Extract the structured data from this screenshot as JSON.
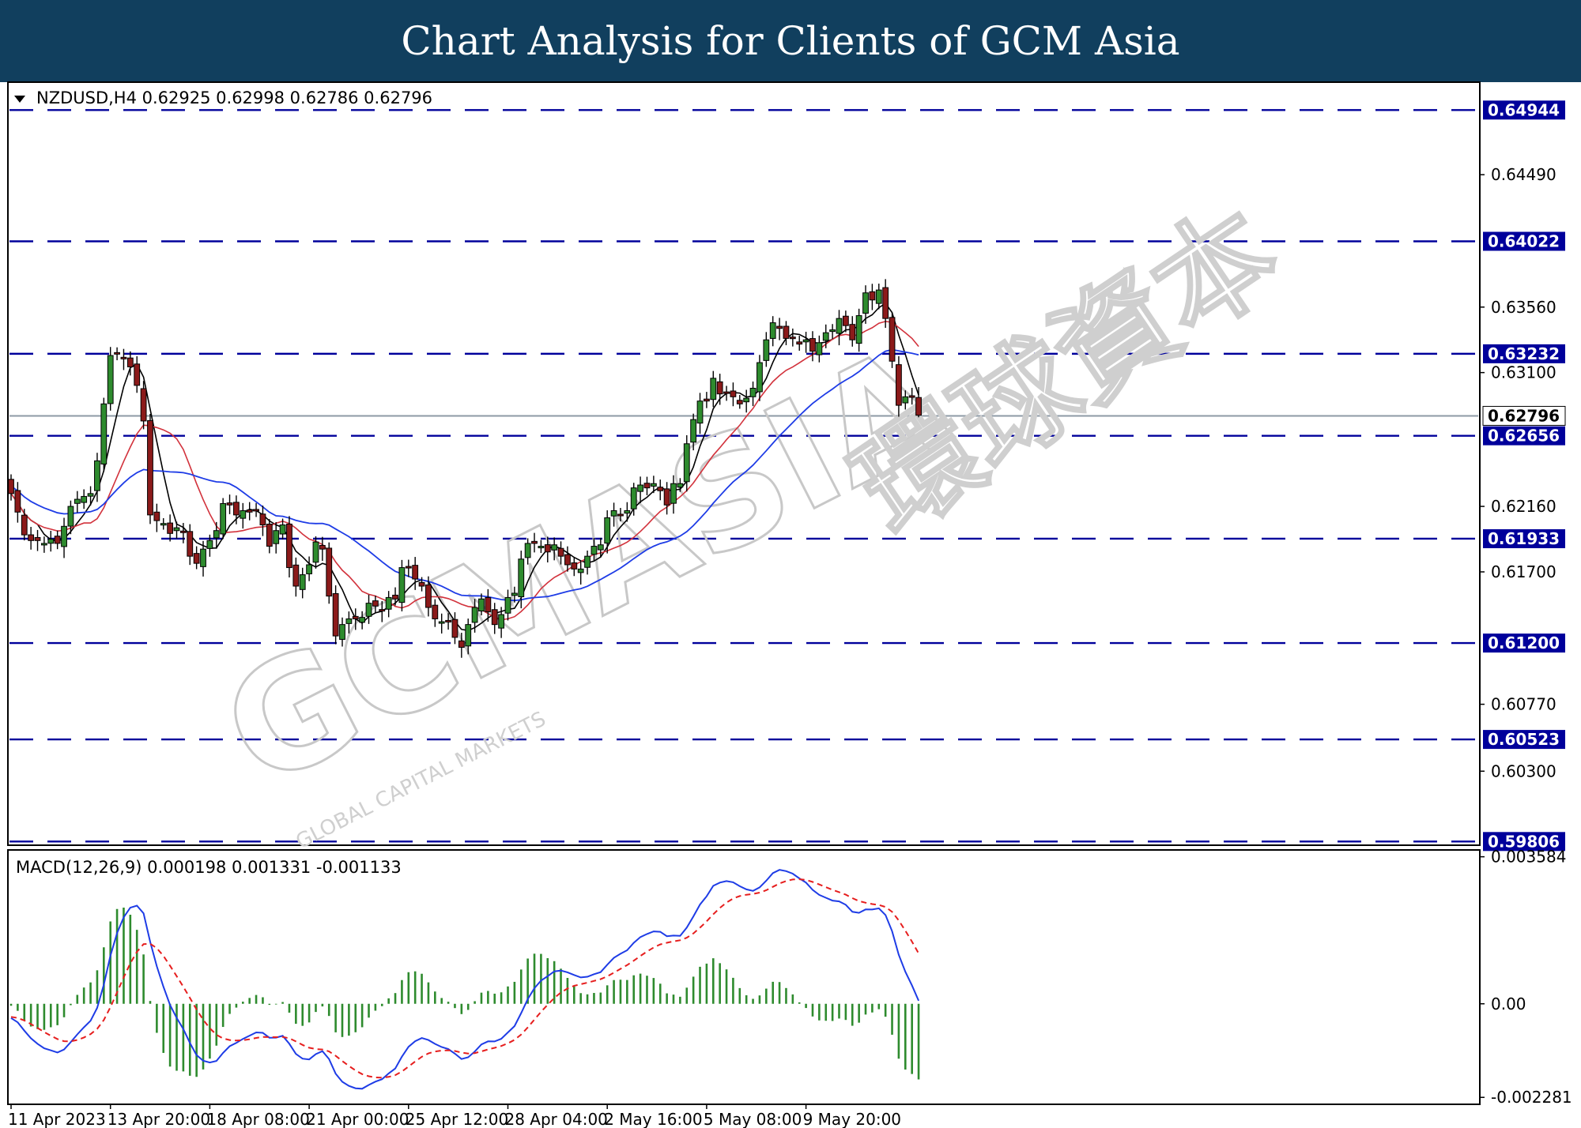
{
  "banner": {
    "title": "Chart Analysis for Clients of GCM Asia"
  },
  "watermark": {
    "main": "GCMASIA",
    "sub": "GLOBAL CAPITAL MARKETS",
    "chinese": "環球資本"
  },
  "colors": {
    "banner": "#113f5e",
    "level_line": "#00009b",
    "bull_candle": "#2e8b2e",
    "bear_candle": "#8b1a1a",
    "ma_fast": "#000000",
    "ma_mid": "#d2323c",
    "ma_slow": "#1e3ce6",
    "macd_line": "#1e3ce6",
    "signal_line": "#e61e1e",
    "histogram": "#2e8b2e",
    "price_tag_bg": "#00009b"
  },
  "chart_data": [
    {
      "type": "candlestick",
      "header": "NZDUSD,H4  0.62925 0.62998 0.62786 0.62796",
      "symbol": "NZDUSD",
      "timeframe": "H4",
      "ohlc_last": [
        0.62925,
        0.62998,
        0.62786,
        0.62796
      ],
      "ylim": [
        0.5978,
        0.6514
      ],
      "y_ticks": [
        "0.64490",
        "0.63560",
        "0.63100",
        "0.62160",
        "0.61700",
        "0.60770",
        "0.60300"
      ],
      "x_ticks": [
        "11 Apr 2023",
        "13 Apr 20:00",
        "18 Apr 08:00",
        "21 Apr 00:00",
        "25 Apr 12:00",
        "28 Apr 04:00",
        "2 May 16:00",
        "5 May 08:00",
        "9 May 20:00"
      ],
      "x_tick_index": [
        0,
        15,
        30,
        45,
        60,
        75,
        90,
        105,
        120
      ],
      "levels": [
        {
          "value": 0.64944,
          "label": "0.64944"
        },
        {
          "value": 0.64022,
          "label": "0.64022"
        },
        {
          "value": 0.63232,
          "label": "0.63232"
        },
        {
          "value": 0.62656,
          "label": "0.62656"
        },
        {
          "value": 0.61933,
          "label": "0.61933"
        },
        {
          "value": 0.612,
          "label": "0.61200"
        },
        {
          "value": 0.60523,
          "label": "0.60523"
        },
        {
          "value": 0.59806,
          "label": "0.59806"
        }
      ],
      "current_price": {
        "value": 0.62796,
        "label": "0.62796"
      },
      "close": [
        0.6225,
        0.6212,
        0.6196,
        0.6192,
        0.6192,
        0.619,
        0.6193,
        0.619,
        0.6202,
        0.6216,
        0.6221,
        0.6223,
        0.6225,
        0.6248,
        0.6288,
        0.6322,
        0.6323,
        0.632,
        0.6314,
        0.6301,
        0.6276,
        0.621,
        0.6206,
        0.6204,
        0.6197,
        0.6201,
        0.6198,
        0.6181,
        0.6176,
        0.6186,
        0.6192,
        0.6199,
        0.6218,
        0.6217,
        0.621,
        0.6213,
        0.6212,
        0.6213,
        0.6203,
        0.6188,
        0.6199,
        0.6203,
        0.6173,
        0.616,
        0.6168,
        0.6175,
        0.6191,
        0.6186,
        0.6153,
        0.6125,
        0.6133,
        0.6137,
        0.6137,
        0.6138,
        0.6148,
        0.6146,
        0.6143,
        0.6152,
        0.6151,
        0.6173,
        0.6173,
        0.6165,
        0.616,
        0.6145,
        0.6137,
        0.6135,
        0.6135,
        0.6124,
        0.6117,
        0.6133,
        0.6145,
        0.6151,
        0.6142,
        0.6133,
        0.614,
        0.6152,
        0.6155,
        0.6179,
        0.619,
        0.619,
        0.6188,
        0.6184,
        0.6189,
        0.6181,
        0.6175,
        0.6172,
        0.6172,
        0.6181,
        0.6188,
        0.6189,
        0.6208,
        0.6213,
        0.621,
        0.6213,
        0.6229,
        0.6231,
        0.6229,
        0.6232,
        0.6227,
        0.6217,
        0.6232,
        0.6232,
        0.626,
        0.6277,
        0.629,
        0.629,
        0.6306,
        0.6295,
        0.6296,
        0.6293,
        0.6288,
        0.6292,
        0.6299,
        0.6317,
        0.6333,
        0.6345,
        0.6341,
        0.6334,
        0.6334,
        0.633,
        0.6333,
        0.6325,
        0.6331,
        0.6338,
        0.634,
        0.6348,
        0.6343,
        0.6333,
        0.635,
        0.6366,
        0.6361,
        0.6368,
        0.6348,
        0.6318,
        0.6287,
        0.6293,
        0.6293,
        0.628
      ]
    },
    {
      "type": "line",
      "header": "MACD(12,26,9) 0.000198 0.001331 -0.001133",
      "indicator": "MACD(12,26,9)",
      "values": [
        0.000198,
        0.001331,
        -0.001133
      ],
      "ylim": [
        -0.00245,
        0.00375
      ],
      "y_ticks": [
        "0.003584",
        "0.00",
        "-0.002281"
      ],
      "y_tick_values": [
        0.003584,
        0.0,
        -0.002281
      ]
    }
  ]
}
